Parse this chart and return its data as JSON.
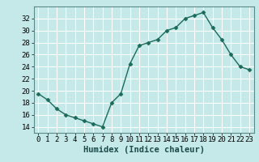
{
  "x": [
    0,
    1,
    2,
    3,
    4,
    5,
    6,
    7,
    8,
    9,
    10,
    11,
    12,
    13,
    14,
    15,
    16,
    17,
    18,
    19,
    20,
    21,
    22,
    23
  ],
  "y": [
    19.5,
    18.5,
    17.0,
    16.0,
    15.5,
    15.0,
    14.5,
    14.0,
    18.0,
    19.5,
    24.5,
    27.5,
    28.0,
    28.5,
    30.0,
    30.5,
    32.0,
    32.5,
    33.0,
    30.5,
    28.5,
    26.0,
    24.0,
    23.5
  ],
  "line_color": "#1a6b5a",
  "marker": "D",
  "marker_size": 2.5,
  "bg_color": "#c5e8e8",
  "grid_color": "#ffffff",
  "xlabel": "Humidex (Indice chaleur)",
  "xlim": [
    -0.5,
    23.5
  ],
  "ylim": [
    13,
    34
  ],
  "yticks": [
    14,
    16,
    18,
    20,
    22,
    24,
    26,
    28,
    30,
    32
  ],
  "xticks": [
    0,
    1,
    2,
    3,
    4,
    5,
    6,
    7,
    8,
    9,
    10,
    11,
    12,
    13,
    14,
    15,
    16,
    17,
    18,
    19,
    20,
    21,
    22,
    23
  ],
  "tick_fontsize": 6.5,
  "label_fontsize": 7.5
}
